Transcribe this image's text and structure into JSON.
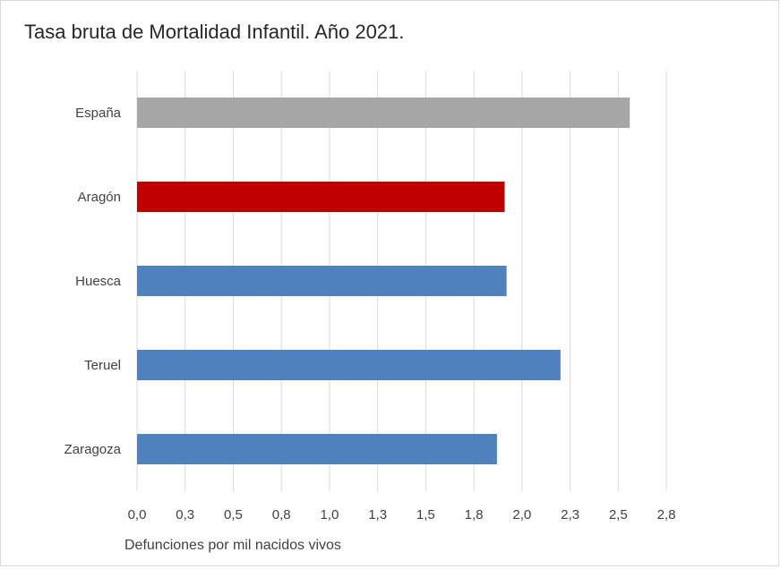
{
  "chart_data": {
    "type": "bar",
    "orientation": "horizontal",
    "title": "Tasa bruta de Mortalidad Infantil. Año 2021.",
    "xlabel": "Defunciones por mil nacidos vivos",
    "ylabel": "",
    "categories": [
      "España",
      "Aragón",
      "Huesca",
      "Teruel",
      "Zaragoza"
    ],
    "values": [
      2.56,
      1.91,
      1.92,
      2.2,
      1.87
    ],
    "bar_colors": [
      "#a6a6a6",
      "#c00000",
      "#4f81bd",
      "#4f81bd",
      "#4f81bd"
    ],
    "xlim": [
      0,
      2.75
    ],
    "x_ticks": [
      0,
      0.25,
      0.5,
      0.75,
      1.0,
      1.25,
      1.5,
      1.75,
      2.0,
      2.25,
      2.5,
      2.75
    ],
    "x_tick_labels": [
      "0,0",
      "0,3",
      "0,5",
      "0,8",
      "1,0",
      "1,3",
      "1,5",
      "1,8",
      "2,0",
      "2,3",
      "2,5",
      "2,8"
    ],
    "grid": true,
    "grid_color": "#d9d9d9",
    "legend": false
  }
}
